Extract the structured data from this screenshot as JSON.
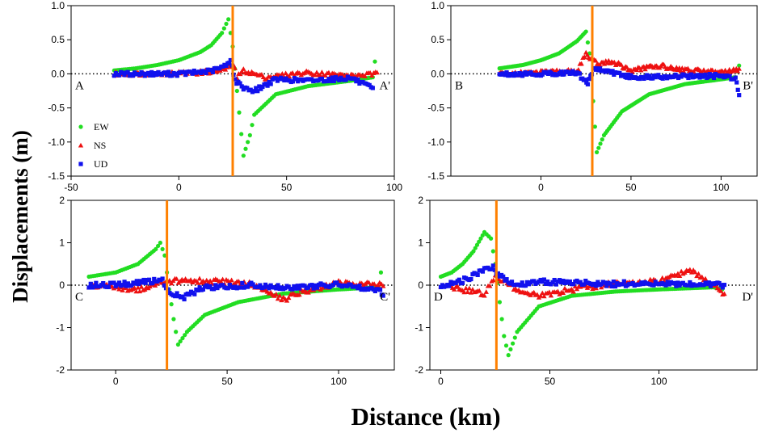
{
  "figure": {
    "ylabel": "Displacements (m)",
    "xlabel": "Distance (km)",
    "legend": [
      {
        "name": "EW",
        "color": "#22dd22",
        "marker": "circle"
      },
      {
        "name": "NS",
        "color": "#ee1111",
        "marker": "triangle"
      },
      {
        "name": "UD",
        "color": "#1111ee",
        "marker": "square"
      }
    ],
    "fault_color": "#ff8000"
  },
  "chart_data": [
    {
      "type": "scatter",
      "panel": "A",
      "start_label": "A",
      "end_label": "A'",
      "xlim": [
        -50,
        100
      ],
      "ylim": [
        -1.5,
        1.0
      ],
      "xticks": [
        -50,
        0,
        50,
        100
      ],
      "xtick_labels": [
        "-50",
        "0",
        "50",
        "100"
      ],
      "yticks": [
        1.0,
        0.5,
        0.0,
        -0.5,
        -1.0,
        -1.5
      ],
      "ytick_labels": [
        "1.0",
        "0.5",
        "0.0",
        "-0.5",
        "-1.0",
        "-1.5"
      ],
      "fault_x": 25,
      "x_range": [
        -30,
        92
      ],
      "show_legend": true,
      "series": [
        {
          "name": "EW",
          "values": [
            [
              -30,
              0.05
            ],
            [
              -20,
              0.08
            ],
            [
              -10,
              0.13
            ],
            [
              0,
              0.2
            ],
            [
              10,
              0.32
            ],
            [
              15,
              0.42
            ],
            [
              20,
              0.6
            ],
            [
              23,
              0.8
            ],
            [
              25,
              0.4
            ],
            [
              27,
              -0.25
            ],
            [
              30,
              -1.2
            ],
            [
              33,
              -0.9
            ],
            [
              35,
              -0.6
            ],
            [
              45,
              -0.3
            ],
            [
              60,
              -0.18
            ],
            [
              80,
              -0.1
            ],
            [
              90,
              -0.05
            ],
            [
              91,
              0.18
            ]
          ]
        },
        {
          "name": "NS",
          "values": [
            [
              -30,
              0.0
            ],
            [
              0,
              0.01
            ],
            [
              10,
              0.02
            ],
            [
              20,
              0.05
            ],
            [
              24,
              0.12
            ],
            [
              26,
              0.1
            ],
            [
              27,
              -0.05
            ],
            [
              30,
              0.05
            ],
            [
              40,
              -0.05
            ],
            [
              60,
              0.02
            ],
            [
              80,
              -0.03
            ],
            [
              92,
              0.0
            ]
          ]
        },
        {
          "name": "UD",
          "values": [
            [
              -30,
              0.0
            ],
            [
              0,
              0.0
            ],
            [
              15,
              0.04
            ],
            [
              22,
              0.12
            ],
            [
              24,
              0.22
            ],
            [
              26,
              -0.1
            ],
            [
              30,
              -0.2
            ],
            [
              35,
              -0.25
            ],
            [
              45,
              -0.08
            ],
            [
              60,
              -0.1
            ],
            [
              80,
              -0.06
            ],
            [
              90,
              -0.22
            ]
          ]
        }
      ]
    },
    {
      "type": "scatter",
      "panel": "B",
      "start_label": "B",
      "end_label": "B'",
      "xlim": [
        -50,
        120
      ],
      "ylim": [
        -1.5,
        1.0
      ],
      "xticks": [
        0,
        50,
        100
      ],
      "xtick_labels": [
        "0",
        "50",
        "100"
      ],
      "yticks": [
        1.0,
        0.5,
        0.0,
        -0.5,
        -1.0,
        -1.5
      ],
      "ytick_labels": [
        "1.0",
        "0.5",
        "0.0",
        "-0.5",
        "-1.0",
        "-1.5"
      ],
      "fault_x": 28.5,
      "x_range": [
        -23,
        112
      ],
      "show_legend": false,
      "series": [
        {
          "name": "EW",
          "values": [
            [
              -23,
              0.08
            ],
            [
              -10,
              0.13
            ],
            [
              0,
              0.2
            ],
            [
              10,
              0.3
            ],
            [
              20,
              0.48
            ],
            [
              25,
              0.62
            ],
            [
              27,
              0.3
            ],
            [
              29,
              -0.4
            ],
            [
              31,
              -1.15
            ],
            [
              35,
              -0.9
            ],
            [
              45,
              -0.55
            ],
            [
              60,
              -0.3
            ],
            [
              80,
              -0.15
            ],
            [
              100,
              -0.08
            ],
            [
              108,
              -0.05
            ],
            [
              110,
              0.12
            ]
          ]
        },
        {
          "name": "NS",
          "values": [
            [
              -23,
              0.0
            ],
            [
              0,
              0.02
            ],
            [
              20,
              0.04
            ],
            [
              25,
              0.3
            ],
            [
              28,
              0.2
            ],
            [
              32,
              0.15
            ],
            [
              40,
              0.18
            ],
            [
              50,
              0.05
            ],
            [
              65,
              0.12
            ],
            [
              80,
              0.06
            ],
            [
              100,
              0.03
            ],
            [
              110,
              0.05
            ]
          ]
        },
        {
          "name": "UD",
          "values": [
            [
              -23,
              0.0
            ],
            [
              0,
              0.0
            ],
            [
              20,
              0.02
            ],
            [
              26,
              -0.15
            ],
            [
              29,
              0.08
            ],
            [
              35,
              0.05
            ],
            [
              50,
              -0.05
            ],
            [
              70,
              -0.04
            ],
            [
              100,
              -0.03
            ],
            [
              108,
              -0.06
            ],
            [
              110,
              -0.3
            ]
          ]
        }
      ]
    },
    {
      "type": "scatter",
      "panel": "C",
      "start_label": "C",
      "end_label": "C'",
      "xlim": [
        -20,
        125
      ],
      "ylim": [
        -2,
        2
      ],
      "xticks": [
        0,
        50,
        100
      ],
      "xtick_labels": [
        "0",
        "50",
        "100"
      ],
      "yticks": [
        2,
        1,
        0,
        -1,
        -2
      ],
      "ytick_labels": [
        "2",
        "1",
        "0",
        "-1",
        "-2"
      ],
      "fault_x": 23,
      "x_range": [
        -12,
        120
      ],
      "show_legend": false,
      "series": [
        {
          "name": "EW",
          "values": [
            [
              -12,
              0.2
            ],
            [
              0,
              0.3
            ],
            [
              10,
              0.5
            ],
            [
              18,
              0.85
            ],
            [
              20,
              1.0
            ],
            [
              22,
              0.7
            ],
            [
              24,
              -0.1
            ],
            [
              26,
              -0.8
            ],
            [
              28,
              -1.4
            ],
            [
              32,
              -1.1
            ],
            [
              40,
              -0.7
            ],
            [
              55,
              -0.4
            ],
            [
              75,
              -0.2
            ],
            [
              100,
              -0.1
            ],
            [
              118,
              -0.05
            ],
            [
              119,
              0.3
            ]
          ]
        },
        {
          "name": "NS",
          "values": [
            [
              -12,
              0.0
            ],
            [
              0,
              -0.05
            ],
            [
              10,
              -0.1
            ],
            [
              20,
              0.05
            ],
            [
              25,
              0.1
            ],
            [
              40,
              0.1
            ],
            [
              60,
              0.05
            ],
            [
              76,
              -0.35
            ],
            [
              80,
              -0.2
            ],
            [
              100,
              0.05
            ],
            [
              120,
              0.0
            ]
          ]
        },
        {
          "name": "UD",
          "values": [
            [
              -12,
              0.0
            ],
            [
              0,
              0.02
            ],
            [
              15,
              0.08
            ],
            [
              21,
              0.1
            ],
            [
              25,
              -0.2
            ],
            [
              30,
              -0.3
            ],
            [
              40,
              -0.05
            ],
            [
              60,
              0.0
            ],
            [
              80,
              -0.05
            ],
            [
              100,
              0.02
            ],
            [
              118,
              -0.1
            ],
            [
              120,
              -0.25
            ]
          ]
        }
      ]
    },
    {
      "type": "scatter",
      "panel": "D",
      "start_label": "D",
      "end_label": "D'",
      "xlim": [
        -5,
        145
      ],
      "ylim": [
        -2,
        2
      ],
      "xticks": [
        0,
        50,
        100
      ],
      "xtick_labels": [
        "0",
        "50",
        "100"
      ],
      "yticks": [
        2,
        1,
        0,
        -1,
        -2
      ],
      "ytick_labels": [
        "2",
        "1",
        "0",
        "-1",
        "-2"
      ],
      "fault_x": 25.5,
      "x_range": [
        0,
        130
      ],
      "show_legend": false,
      "series": [
        {
          "name": "EW",
          "values": [
            [
              0,
              0.2
            ],
            [
              5,
              0.3
            ],
            [
              10,
              0.5
            ],
            [
              15,
              0.8
            ],
            [
              20,
              1.25
            ],
            [
              23,
              1.1
            ],
            [
              25,
              0.5
            ],
            [
              27,
              -0.4
            ],
            [
              29,
              -1.2
            ],
            [
              31,
              -1.65
            ],
            [
              35,
              -1.1
            ],
            [
              45,
              -0.5
            ],
            [
              60,
              -0.25
            ],
            [
              80,
              -0.15
            ],
            [
              100,
              -0.1
            ],
            [
              125,
              -0.05
            ],
            [
              129,
              -0.1
            ]
          ]
        },
        {
          "name": "NS",
          "values": [
            [
              0,
              0.0
            ],
            [
              10,
              -0.1
            ],
            [
              20,
              -0.2
            ],
            [
              25,
              0.2
            ],
            [
              35,
              -0.1
            ],
            [
              45,
              -0.25
            ],
            [
              60,
              -0.1
            ],
            [
              80,
              0.05
            ],
            [
              100,
              0.1
            ],
            [
              115,
              0.35
            ],
            [
              130,
              -0.2
            ]
          ]
        },
        {
          "name": "UD",
          "values": [
            [
              0,
              0.0
            ],
            [
              10,
              0.1
            ],
            [
              20,
              0.35
            ],
            [
              24,
              0.4
            ],
            [
              27,
              0.2
            ],
            [
              35,
              0.0
            ],
            [
              45,
              0.1
            ],
            [
              60,
              0.05
            ],
            [
              80,
              0.03
            ],
            [
              100,
              0.05
            ],
            [
              130,
              0.0
            ]
          ]
        }
      ]
    }
  ]
}
